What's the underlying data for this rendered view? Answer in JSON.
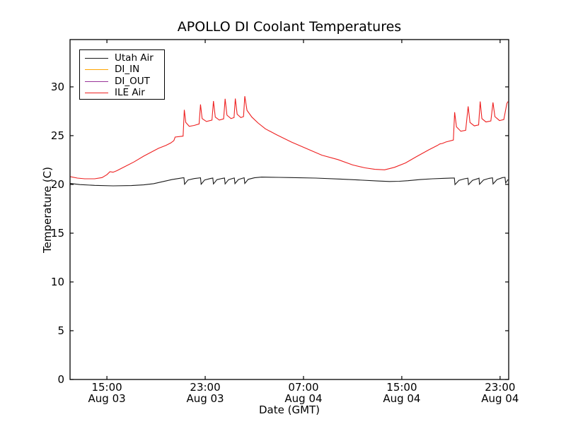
{
  "chart_data": {
    "type": "line",
    "title": "APOLLO DI Coolant Temperatures",
    "xlabel": "Date (GMT)",
    "ylabel": "Temperature (C)",
    "grid": false,
    "legend_position": "upper left",
    "x_axis_note": "x values are hours elapsed since Aug 03 12:00 GMT",
    "xlim": [
      0,
      35.7
    ],
    "ylim": [
      0,
      34.85
    ],
    "y_ticks": [
      {
        "value": 0,
        "label": "0"
      },
      {
        "value": 5,
        "label": "5"
      },
      {
        "value": 10,
        "label": "10"
      },
      {
        "value": 15,
        "label": "15"
      },
      {
        "value": 20,
        "label": "20"
      },
      {
        "value": 25,
        "label": "25"
      },
      {
        "value": 30,
        "label": "30"
      }
    ],
    "x_ticks": [
      {
        "t": 3,
        "line1": "15:00",
        "line2": "Aug 03"
      },
      {
        "t": 11,
        "line1": "23:00",
        "line2": "Aug 03"
      },
      {
        "t": 19,
        "line1": "07:00",
        "line2": "Aug 04"
      },
      {
        "t": 27,
        "line1": "15:00",
        "line2": "Aug 04"
      },
      {
        "t": 35,
        "line1": "23:00",
        "line2": "Aug 04"
      }
    ],
    "series": [
      {
        "name": "Utah Air",
        "color": "#1a1a1a",
        "points": [
          [
            0,
            20.1
          ],
          [
            0.8,
            19.98
          ],
          [
            2,
            19.9
          ],
          [
            3.5,
            19.85
          ],
          [
            5,
            19.88
          ],
          [
            6,
            19.95
          ],
          [
            6.8,
            20.08
          ],
          [
            7.6,
            20.3
          ],
          [
            8.3,
            20.5
          ],
          [
            8.8,
            20.6
          ],
          [
            9.2,
            20.68
          ],
          [
            9.27,
            20.68
          ],
          [
            9.32,
            20.02
          ],
          [
            9.6,
            20.45
          ],
          [
            10.1,
            20.6
          ],
          [
            10.62,
            20.68
          ],
          [
            10.67,
            20.02
          ],
          [
            10.95,
            20.45
          ],
          [
            11.4,
            20.6
          ],
          [
            11.62,
            20.66
          ],
          [
            11.67,
            20.05
          ],
          [
            11.95,
            20.48
          ],
          [
            12.4,
            20.62
          ],
          [
            12.57,
            20.66
          ],
          [
            12.62,
            20.05
          ],
          [
            12.9,
            20.48
          ],
          [
            13.3,
            20.64
          ],
          [
            13.37,
            20.66
          ],
          [
            13.42,
            20.08
          ],
          [
            13.7,
            20.5
          ],
          [
            14.1,
            20.66
          ],
          [
            14.17,
            20.68
          ],
          [
            14.22,
            20.1
          ],
          [
            14.5,
            20.52
          ],
          [
            15,
            20.68
          ],
          [
            15.6,
            20.75
          ],
          [
            17,
            20.72
          ],
          [
            18,
            20.7
          ],
          [
            20,
            20.65
          ],
          [
            22,
            20.55
          ],
          [
            23.5,
            20.45
          ],
          [
            25,
            20.35
          ],
          [
            26,
            20.3
          ],
          [
            26.8,
            20.32
          ],
          [
            27.5,
            20.38
          ],
          [
            28.5,
            20.5
          ],
          [
            29.5,
            20.58
          ],
          [
            30.5,
            20.63
          ],
          [
            31.2,
            20.66
          ],
          [
            31.28,
            20.66
          ],
          [
            31.33,
            19.98
          ],
          [
            31.65,
            20.42
          ],
          [
            32.1,
            20.58
          ],
          [
            32.38,
            20.64
          ],
          [
            32.43,
            19.98
          ],
          [
            32.75,
            20.42
          ],
          [
            33.2,
            20.6
          ],
          [
            33.28,
            20.64
          ],
          [
            33.33,
            20.02
          ],
          [
            33.65,
            20.45
          ],
          [
            34.1,
            20.62
          ],
          [
            34.38,
            20.68
          ],
          [
            34.43,
            20.05
          ],
          [
            34.75,
            20.5
          ],
          [
            35.2,
            20.7
          ],
          [
            35.4,
            20.72
          ],
          [
            35.45,
            20.15
          ],
          [
            35.65,
            20.5
          ]
        ]
      },
      {
        "name": "DI_IN",
        "color": "#ffa500",
        "points": []
      },
      {
        "name": "DI_OUT",
        "color": "#993399",
        "points": []
      },
      {
        "name": "ILE Air",
        "color": "#ee2020",
        "points": [
          [
            0,
            20.8
          ],
          [
            0.6,
            20.65
          ],
          [
            1.2,
            20.58
          ],
          [
            2,
            20.58
          ],
          [
            2.6,
            20.7
          ],
          [
            3,
            21.0
          ],
          [
            3.25,
            21.3
          ],
          [
            3.5,
            21.25
          ],
          [
            3.8,
            21.4
          ],
          [
            4.5,
            21.85
          ],
          [
            5.2,
            22.3
          ],
          [
            6,
            22.9
          ],
          [
            6.6,
            23.3
          ],
          [
            7.2,
            23.7
          ],
          [
            7.8,
            24.0
          ],
          [
            8.2,
            24.25
          ],
          [
            8.45,
            24.5
          ],
          [
            8.55,
            24.85
          ],
          [
            9.2,
            24.95
          ],
          [
            9.3,
            27.65
          ],
          [
            9.42,
            26.35
          ],
          [
            9.7,
            25.95
          ],
          [
            10.1,
            26.05
          ],
          [
            10.5,
            26.2
          ],
          [
            10.62,
            28.2
          ],
          [
            10.75,
            26.75
          ],
          [
            11.1,
            26.45
          ],
          [
            11.55,
            26.6
          ],
          [
            11.67,
            28.55
          ],
          [
            11.82,
            26.9
          ],
          [
            12.15,
            26.6
          ],
          [
            12.5,
            26.72
          ],
          [
            12.62,
            28.78
          ],
          [
            12.77,
            27.1
          ],
          [
            13.1,
            26.75
          ],
          [
            13.35,
            26.85
          ],
          [
            13.45,
            28.8
          ],
          [
            13.6,
            27.2
          ],
          [
            13.9,
            26.85
          ],
          [
            14.12,
            26.95
          ],
          [
            14.22,
            29.05
          ],
          [
            14.4,
            27.6
          ],
          [
            14.8,
            26.9
          ],
          [
            15.3,
            26.3
          ],
          [
            15.9,
            25.7
          ],
          [
            16.8,
            25.1
          ],
          [
            18,
            24.35
          ],
          [
            19.2,
            23.7
          ],
          [
            20.5,
            23.0
          ],
          [
            21.8,
            22.55
          ],
          [
            23,
            22.0
          ],
          [
            24,
            21.7
          ],
          [
            24.8,
            21.55
          ],
          [
            25.6,
            21.5
          ],
          [
            26.4,
            21.75
          ],
          [
            27.3,
            22.2
          ],
          [
            28.2,
            22.85
          ],
          [
            29.2,
            23.55
          ],
          [
            29.9,
            24.0
          ],
          [
            30.1,
            24.15
          ],
          [
            30.3,
            24.2
          ],
          [
            30.6,
            24.35
          ],
          [
            31.2,
            24.55
          ],
          [
            31.3,
            27.4
          ],
          [
            31.45,
            25.9
          ],
          [
            31.8,
            25.45
          ],
          [
            32.2,
            25.55
          ],
          [
            32.4,
            28.0
          ],
          [
            32.55,
            26.35
          ],
          [
            32.9,
            26.0
          ],
          [
            33.25,
            26.1
          ],
          [
            33.38,
            28.5
          ],
          [
            33.52,
            26.75
          ],
          [
            33.85,
            26.4
          ],
          [
            34.25,
            26.5
          ],
          [
            34.42,
            28.4
          ],
          [
            34.58,
            26.95
          ],
          [
            34.95,
            26.55
          ],
          [
            35.3,
            26.65
          ],
          [
            35.55,
            28.3
          ],
          [
            35.65,
            28.5
          ]
        ]
      }
    ]
  }
}
